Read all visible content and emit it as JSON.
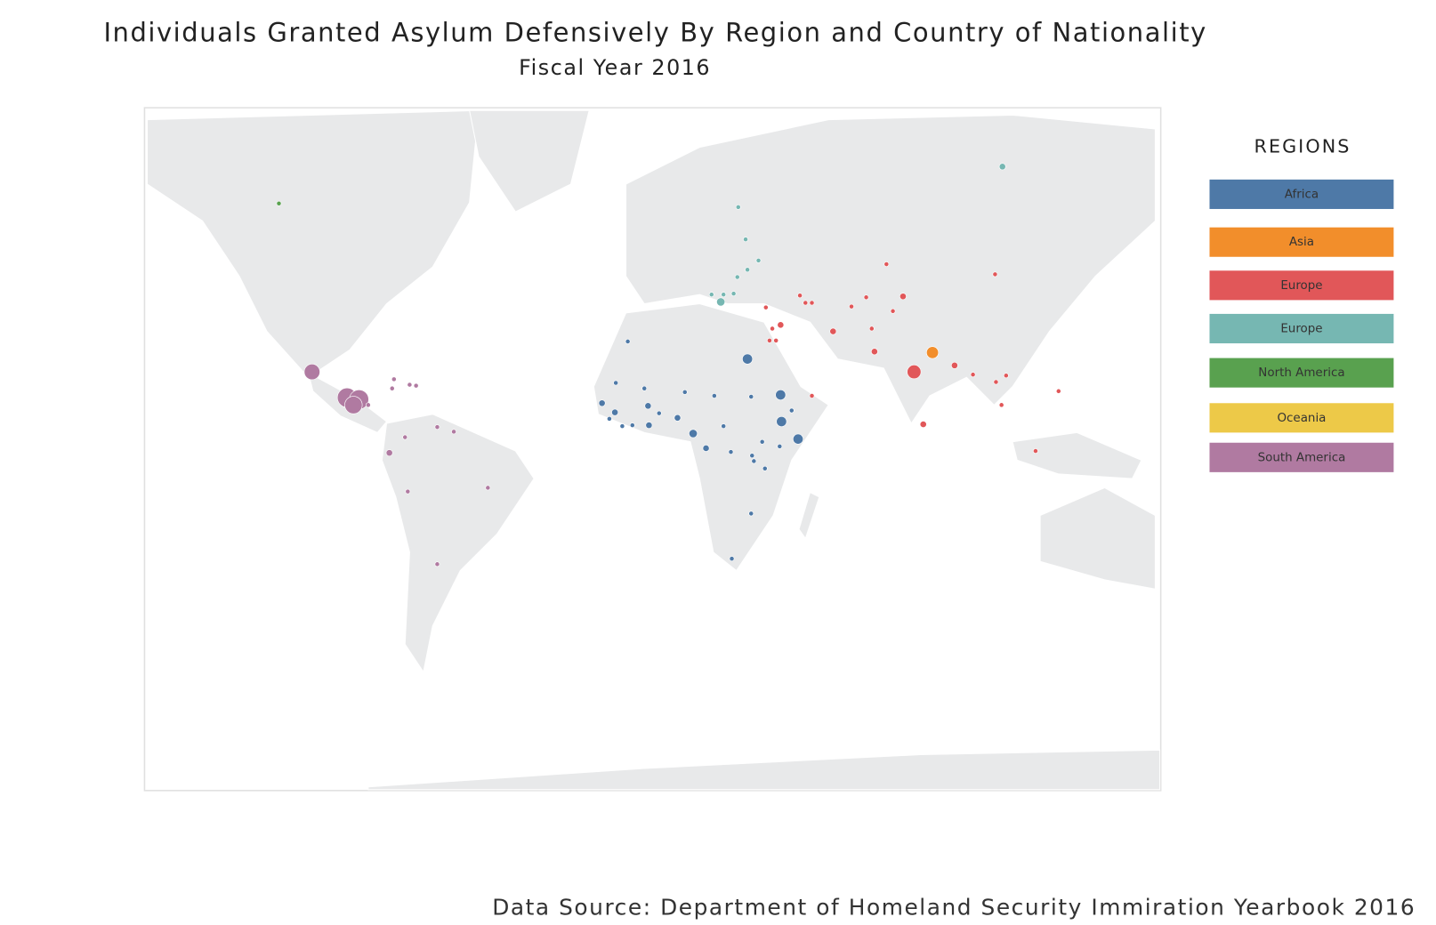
{
  "header": {
    "title": "Individuals Granted Asylum Defensively By Region and Country of Nationality",
    "subtitle": "Fiscal Year 2016"
  },
  "legend": {
    "title": "REGIONS",
    "items": [
      {
        "label": "Africa",
        "color": "#4e79a7"
      },
      {
        "label": "Asia",
        "color": "#f28e2b"
      },
      {
        "label": "Europe",
        "color": "#e15759"
      },
      {
        "label": "Europe",
        "color": "#76b7b2"
      },
      {
        "label": "North America",
        "color": "#59a14f"
      },
      {
        "label": "Oceania",
        "color": "#edc948"
      },
      {
        "label": "South America",
        "color": "#b07aa1"
      }
    ]
  },
  "footer": {
    "source": "Data Source: Department of Homeland Security Immiration Yearbook 2016"
  }
}
